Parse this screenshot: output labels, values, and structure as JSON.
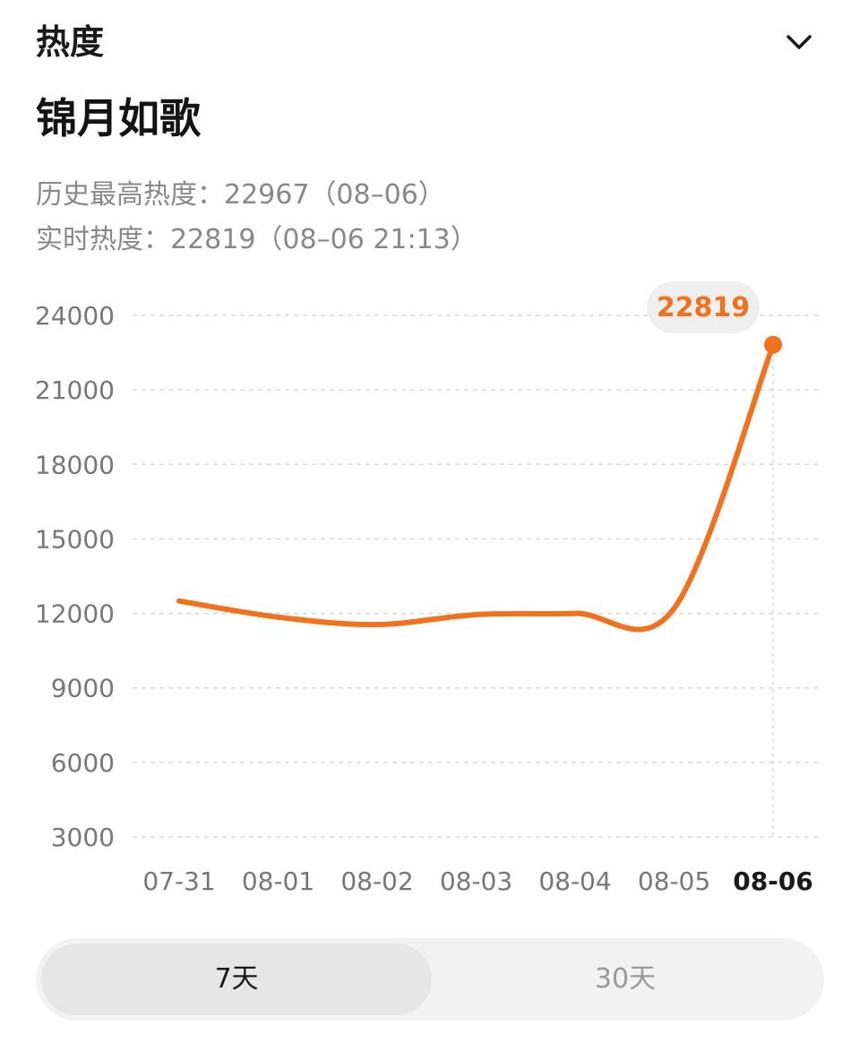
{
  "header": {
    "title": "热度"
  },
  "show": {
    "title": "锦月如歌"
  },
  "stats": {
    "history_line": "历史最高热度：22967（08–06）",
    "realtime_line": "实时热度：22819（08–06 21:13）"
  },
  "colors": {
    "accent": "#f2711c",
    "grid": "#d9d9d9",
    "axis_text": "#777777",
    "bubble_bg": "#efefef"
  },
  "icons": {
    "chevron": "chevron-down-icon"
  },
  "range_toggle": {
    "options": [
      "7天",
      "30天"
    ],
    "selected": "7天"
  },
  "chart_data": {
    "type": "line",
    "title": "",
    "xlabel": "",
    "ylabel": "",
    "categories": [
      "07-31",
      "08-01",
      "08-02",
      "08-03",
      "08-04",
      "08-05",
      "08-06"
    ],
    "series": [
      {
        "values": [
          12500,
          11850,
          11550,
          11950,
          12000,
          12200,
          22819
        ]
      }
    ],
    "ylim": [
      3000,
      24000
    ],
    "yticks": [
      24000,
      21000,
      18000,
      15000,
      12000,
      9000,
      6000,
      3000
    ],
    "grid": true,
    "highlight": {
      "category": "08-06",
      "label": "22819"
    }
  }
}
